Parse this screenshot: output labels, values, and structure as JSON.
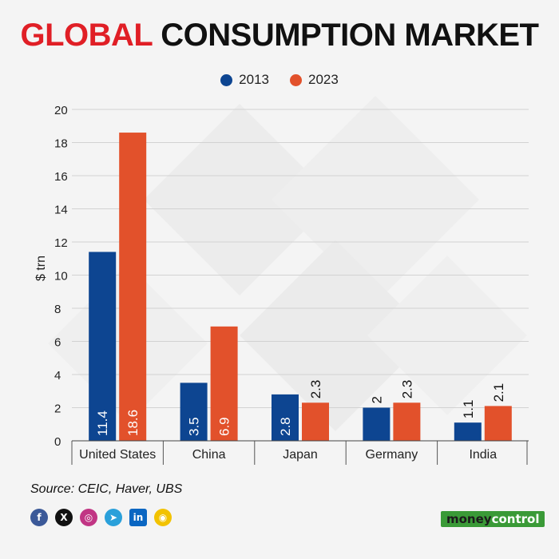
{
  "title": {
    "part1": "GLOBAL",
    "part2": "CONSUMPTION MARKET"
  },
  "legend": [
    {
      "label": "2013",
      "color": "#0d4591"
    },
    {
      "label": "2023",
      "color": "#e2512b"
    }
  ],
  "chart_data": {
    "type": "bar",
    "title": "GLOBAL CONSUMPTION MARKET",
    "categories": [
      "United States",
      "China",
      "Japan",
      "Germany",
      "India"
    ],
    "series": [
      {
        "name": "2013",
        "color": "#0d4591",
        "values": [
          11.4,
          3.5,
          2.8,
          2,
          1.1
        ]
      },
      {
        "name": "2023",
        "color": "#e2512b",
        "values": [
          18.6,
          6.9,
          2.3,
          2.3,
          2.1
        ]
      }
    ],
    "ylabel": "$ trn",
    "xlabel": "",
    "ylim": [
      0,
      20
    ],
    "yticks": [
      0,
      2,
      4,
      6,
      8,
      10,
      12,
      14,
      16,
      18,
      20
    ],
    "grid": true
  },
  "source": "Source: CEIC, Haver, UBS",
  "social": [
    {
      "name": "facebook-icon",
      "glyph": "f",
      "color": "#3b5998"
    },
    {
      "name": "x-icon",
      "glyph": "X",
      "color": "#111111"
    },
    {
      "name": "instagram-icon",
      "glyph": "◎",
      "color": "#c13584"
    },
    {
      "name": "telegram-icon",
      "glyph": "➤",
      "color": "#2aa0da"
    },
    {
      "name": "linkedin-icon",
      "glyph": "in",
      "color": "#0a66c2"
    },
    {
      "name": "app-icon",
      "glyph": "◉",
      "color": "#f2c200"
    }
  ],
  "brand": {
    "part1": "money",
    "part2": "control"
  }
}
